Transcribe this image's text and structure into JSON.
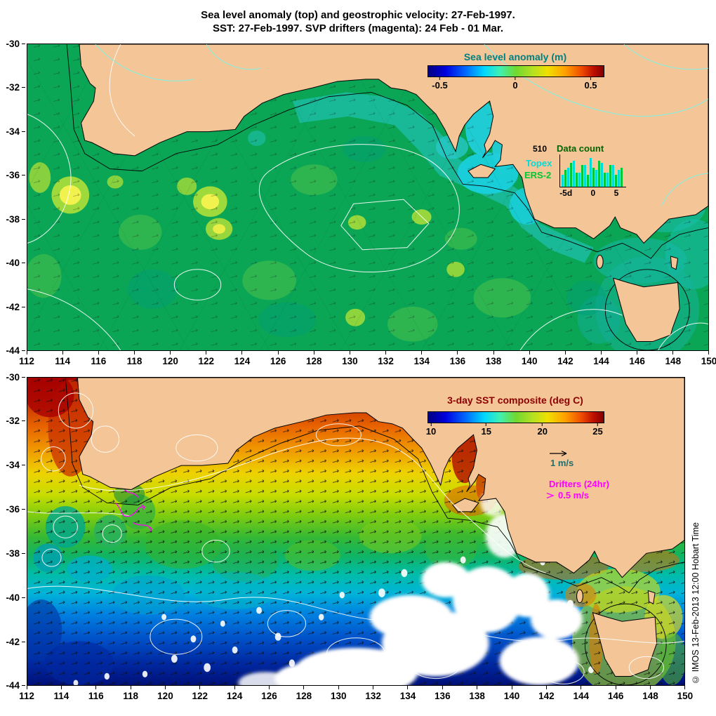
{
  "title": {
    "line1": "Sea level anomaly (top) and geostrophic velocity: 27-Feb-1997.",
    "line2": "SST: 27-Feb-1997. SVP drifters (magenta): 24 Feb - 01 Mar."
  },
  "axes": {
    "x_ticks": [
      "112",
      "114",
      "116",
      "118",
      "120",
      "122",
      "124",
      "126",
      "128",
      "130",
      "132",
      "134",
      "136",
      "138",
      "140",
      "142",
      "144",
      "146",
      "148",
      "150"
    ],
    "y_ticks": [
      "-30",
      "-32",
      "-34",
      "-36",
      "-38",
      "-40",
      "-42",
      "-44"
    ]
  },
  "top_panel": {
    "colorbar": {
      "title": "Sea level anomaly (m)",
      "ticks": [
        "-0.5",
        "0",
        "0.5"
      ]
    },
    "data_count": {
      "title": "Data count",
      "y_label": "510",
      "series_topex": "Topex",
      "series_ers2": "ERS-2",
      "x_ticks": [
        "-5d",
        "0",
        "5"
      ],
      "topex_counts": [
        5,
        8,
        11,
        6,
        9,
        12,
        7,
        10,
        6,
        9,
        7
      ],
      "ers2_counts": [
        7,
        10,
        6,
        9,
        5,
        8,
        11,
        6,
        9,
        5,
        8
      ]
    }
  },
  "bottom_panel": {
    "colorbar": {
      "title": "3-day SST composite (deg C)",
      "ticks": [
        "10",
        "15",
        "20",
        "25"
      ]
    },
    "legend": {
      "velocity_label": "1 m/s",
      "drifters_label": "Drifters (24hr)",
      "drifter_speed_label": "0.5 m/s"
    }
  },
  "copyright": "© IMOS 13-Feb-2013 12:00 Hobart Time",
  "colors": {
    "land": "#F4C596",
    "ocean-sla": "#0AA655",
    "sla-title": "#008080",
    "sst-title": "#8B0000",
    "magenta": "#FF00FF",
    "topex": "#00DCDC",
    "ers2": "#00C832",
    "data-count-title": "#006400",
    "velocity-label": "#1F6F6F"
  },
  "chart_data": [
    {
      "type": "heatmap",
      "title": "Sea level anomaly (m)",
      "date": "27-Feb-1997",
      "x_range": [
        112,
        150
      ],
      "y_range": [
        -44,
        -30
      ],
      "x_tick_step": 2,
      "y_tick_step": 2,
      "colorbar_ticks": [
        -0.5,
        0,
        0.5
      ],
      "colorbar_range": [
        -0.6,
        0.6
      ],
      "legend_position": "top-right inside panel",
      "overlays": [
        "geostrophic velocity arrows",
        "satellite ground tracks (dotted)",
        "white SLA contours",
        "Topex/ERS-2 data count histogram"
      ]
    },
    {
      "type": "heatmap",
      "title": "3-day SST composite (deg C)",
      "date": "27-Feb-1997",
      "x_range": [
        112,
        150
      ],
      "y_range": [
        -44,
        -30
      ],
      "x_tick_step": 2,
      "y_tick_step": 2,
      "colorbar_ticks": [
        10,
        15,
        20,
        25
      ],
      "colorbar_range": [
        10,
        25
      ],
      "legend_position": "top-right inside panel",
      "overlays": [
        "velocity arrows (1 m/s scale)",
        "SVP drifters magenta (24hr, > 0.5 m/s)",
        "white contours",
        "cloud mask (white)"
      ]
    }
  ]
}
